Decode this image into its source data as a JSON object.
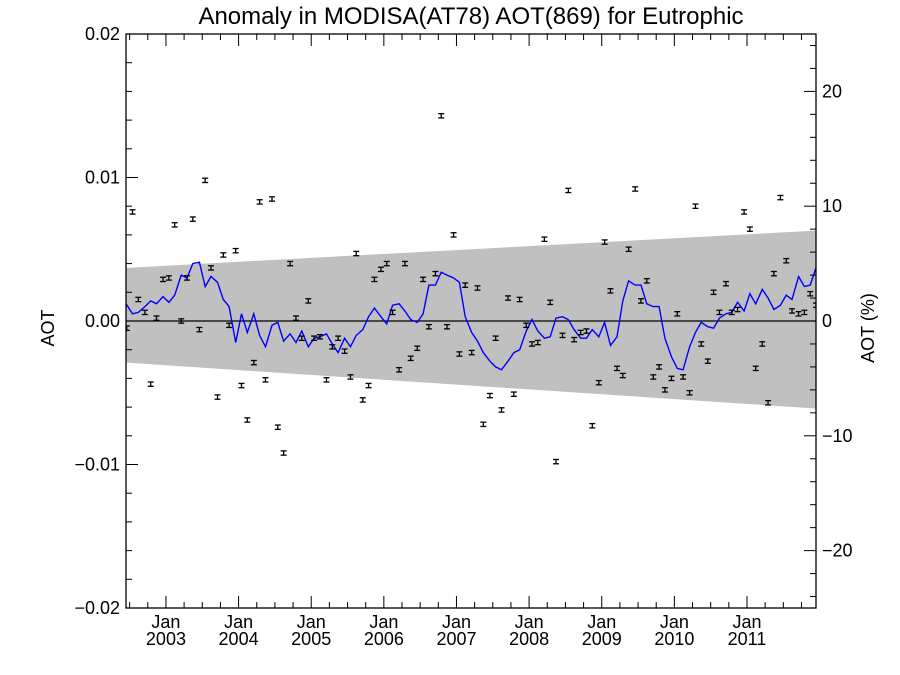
{
  "chart_data": {
    "type": "scatter",
    "title": "Anomaly in MODISA(AT78) AOT(869) for Eutrophic",
    "ylabel": "AOT",
    "ylabel_right": "AOT (%)",
    "xlim": [
      2002.45,
      2011.95
    ],
    "ylim": [
      -0.02,
      0.02
    ],
    "ylim_right": [
      -25,
      25
    ],
    "y_ticks": [
      {
        "value": -0.02,
        "label": "−0.02"
      },
      {
        "value": -0.01,
        "label": "−0.01"
      },
      {
        "value": 0.0,
        "label": "0.00"
      },
      {
        "value": 0.01,
        "label": "0.01"
      },
      {
        "value": 0.02,
        "label": "0.02"
      }
    ],
    "y_ticks_right": [
      {
        "value": -20,
        "label": "−20"
      },
      {
        "value": -10,
        "label": "−10"
      },
      {
        "value": 0,
        "label": "0"
      },
      {
        "value": 10,
        "label": "10"
      },
      {
        "value": 20,
        "label": "20"
      }
    ],
    "x_ticks": [
      {
        "value": 2003.0,
        "month": "Jan",
        "year": "2003"
      },
      {
        "value": 2004.0,
        "month": "Jan",
        "year": "2004"
      },
      {
        "value": 2005.0,
        "month": "Jan",
        "year": "2005"
      },
      {
        "value": 2006.0,
        "month": "Jan",
        "year": "2006"
      },
      {
        "value": 2007.0,
        "month": "Jan",
        "year": "2007"
      },
      {
        "value": 2008.0,
        "month": "Jan",
        "year": "2008"
      },
      {
        "value": 2009.0,
        "month": "Jan",
        "year": "2009"
      },
      {
        "value": 2010.0,
        "month": "Jan",
        "year": "2010"
      },
      {
        "value": 2011.0,
        "month": "Jan",
        "year": "2011"
      }
    ],
    "band": {
      "color": "#c0c0c0",
      "x": [
        2002.45,
        2011.95
      ],
      "upper": [
        0.0037,
        0.0063
      ],
      "lower": [
        -0.0029,
        -0.0061
      ]
    },
    "zero_line_color": "#000000",
    "points": {
      "color": "#000000",
      "error": 0.00015,
      "x": [
        2002.46,
        2002.54,
        2002.62,
        2002.71,
        2002.79,
        2002.87,
        2002.96,
        2003.04,
        2003.12,
        2003.21,
        2003.29,
        2003.37,
        2003.46,
        2003.54,
        2003.62,
        2003.71,
        2003.79,
        2003.87,
        2003.96,
        2004.04,
        2004.12,
        2004.21,
        2004.29,
        2004.37,
        2004.46,
        2004.54,
        2004.62,
        2004.71,
        2004.79,
        2004.87,
        2004.96,
        2005.04,
        2005.12,
        2005.21,
        2005.29,
        2005.37,
        2005.46,
        2005.54,
        2005.62,
        2005.71,
        2005.79,
        2005.87,
        2005.96,
        2006.04,
        2006.12,
        2006.21,
        2006.29,
        2006.37,
        2006.46,
        2006.54,
        2006.62,
        2006.71,
        2006.79,
        2006.87,
        2006.96,
        2007.04,
        2007.12,
        2007.21,
        2007.29,
        2007.37,
        2007.46,
        2007.54,
        2007.62,
        2007.71,
        2007.79,
        2007.87,
        2007.96,
        2008.04,
        2008.12,
        2008.21,
        2008.29,
        2008.37,
        2008.46,
        2008.54,
        2008.62,
        2008.71,
        2008.79,
        2008.87,
        2008.96,
        2009.04,
        2009.12,
        2009.21,
        2009.29,
        2009.37,
        2009.46,
        2009.54,
        2009.62,
        2009.71,
        2009.79,
        2009.87,
        2009.96,
        2010.04,
        2010.12,
        2010.21,
        2010.29,
        2010.37,
        2010.46,
        2010.54,
        2010.62,
        2010.71,
        2010.79,
        2010.87,
        2010.96,
        2011.04,
        2011.12,
        2011.21,
        2011.29,
        2011.37,
        2011.46,
        2011.54,
        2011.62,
        2011.71,
        2011.79,
        2011.87,
        2011.95
      ],
      "y": [
        -0.0005,
        0.0076,
        0.0015,
        0.0006,
        -0.0044,
        0.0002,
        0.0029,
        0.003,
        0.0067,
        0.0,
        0.003,
        0.0071,
        -0.0006,
        0.0098,
        0.0037,
        -0.0053,
        0.0046,
        -0.0003,
        0.0049,
        -0.0045,
        -0.0069,
        -0.0029,
        0.0083,
        -0.0041,
        0.0085,
        -0.0074,
        -0.0092,
        0.004,
        0.0002,
        -0.0012,
        0.0014,
        -0.0012,
        -0.0011,
        -0.0041,
        -0.0018,
        -0.0012,
        -0.0021,
        -0.0039,
        0.0047,
        -0.0055,
        -0.0045,
        0.0029,
        0.0036,
        0.004,
        0.0006,
        -0.0034,
        0.004,
        -0.0026,
        -0.0019,
        0.0029,
        -0.0004,
        0.0033,
        0.0143,
        -0.0004,
        0.006,
        -0.0023,
        0.0025,
        -0.0022,
        0.0023,
        -0.0072,
        -0.0052,
        -0.0012,
        -0.0062,
        0.0016,
        -0.0051,
        0.0015,
        -0.0003,
        -0.0016,
        -0.0015,
        0.0057,
        0.0013,
        -0.0098,
        -0.001,
        0.0091,
        -0.0013,
        -0.0008,
        -0.0007,
        -0.0073,
        -0.0043,
        0.0055,
        0.0021,
        -0.0033,
        -0.0038,
        0.005,
        0.0092,
        0.0014,
        0.0028,
        -0.0039,
        -0.0032,
        -0.0048,
        -0.004,
        0.0005,
        -0.0039,
        -0.005,
        0.008,
        -0.0016,
        -0.0028,
        0.002,
        0.0006,
        0.0026,
        0.0006,
        0.0008,
        0.0076,
        0.0064,
        -0.0033,
        -0.0016,
        -0.0057,
        0.0033,
        0.0086,
        0.0042,
        0.0007,
        0.0005,
        0.0006,
        0.0019,
        0.0011
      ]
    },
    "line": {
      "color": "#0000ff",
      "x": [
        2002.45,
        2002.54,
        2002.62,
        2002.71,
        2002.79,
        2002.87,
        2002.96,
        2003.04,
        2003.12,
        2003.21,
        2003.29,
        2003.37,
        2003.46,
        2003.54,
        2003.62,
        2003.71,
        2003.79,
        2003.87,
        2003.96,
        2004.04,
        2004.12,
        2004.21,
        2004.29,
        2004.37,
        2004.46,
        2004.54,
        2004.62,
        2004.71,
        2004.79,
        2004.87,
        2004.96,
        2005.04,
        2005.12,
        2005.21,
        2005.29,
        2005.37,
        2005.46,
        2005.54,
        2005.62,
        2005.71,
        2005.79,
        2005.87,
        2005.96,
        2006.04,
        2006.12,
        2006.21,
        2006.29,
        2006.37,
        2006.46,
        2006.54,
        2006.62,
        2006.71,
        2006.79,
        2006.87,
        2006.96,
        2007.04,
        2007.12,
        2007.21,
        2007.29,
        2007.37,
        2007.46,
        2007.54,
        2007.62,
        2007.71,
        2007.79,
        2007.87,
        2007.96,
        2008.04,
        2008.12,
        2008.21,
        2008.29,
        2008.37,
        2008.46,
        2008.54,
        2008.62,
        2008.71,
        2008.79,
        2008.87,
        2008.96,
        2009.04,
        2009.12,
        2009.21,
        2009.29,
        2009.37,
        2009.46,
        2009.54,
        2009.62,
        2009.71,
        2009.79,
        2009.87,
        2009.96,
        2010.04,
        2010.12,
        2010.21,
        2010.29,
        2010.37,
        2010.46,
        2010.54,
        2010.62,
        2010.71,
        2010.79,
        2010.87,
        2010.96,
        2011.04,
        2011.12,
        2011.21,
        2011.29,
        2011.37,
        2011.46,
        2011.54,
        2011.62,
        2011.71,
        2011.79,
        2011.87,
        2011.95
      ],
      "y": [
        0.0012,
        0.0005,
        0.0006,
        0.001,
        0.0014,
        0.0012,
        0.0017,
        0.0013,
        0.0018,
        0.0032,
        0.003,
        0.004,
        0.0041,
        0.0024,
        0.0031,
        0.0027,
        0.0015,
        0.001,
        -0.0015,
        0.0005,
        -0.0008,
        0.0005,
        -0.001,
        -0.0018,
        -0.0003,
        -0.0001,
        -0.0014,
        -0.0009,
        -0.0015,
        -0.0007,
        -0.0018,
        -0.0012,
        -0.0011,
        -0.0009,
        -0.0016,
        -0.0022,
        -0.0012,
        -0.0018,
        -0.001,
        -0.0006,
        0.0003,
        0.0009,
        0.0003,
        -0.0002,
        0.0011,
        0.0012,
        0.0007,
        0.0001,
        -0.0001,
        0.0005,
        0.0025,
        0.0025,
        0.0034,
        0.0032,
        0.003,
        0.0027,
        0.0003,
        -0.0008,
        -0.0014,
        -0.0022,
        -0.0028,
        -0.0032,
        -0.0034,
        -0.0028,
        -0.0022,
        -0.002,
        -0.0007,
        0.0001,
        -0.0007,
        -0.0012,
        -0.0011,
        0.0002,
        0.0003,
        0.0001,
        -0.0006,
        -0.0012,
        -0.0012,
        -0.0006,
        -0.0011,
        -0.0001,
        -0.0017,
        -0.0011,
        0.0014,
        0.0028,
        0.0025,
        0.0025,
        0.0012,
        0.001,
        0.001,
        -0.0012,
        -0.0025,
        -0.0033,
        -0.0034,
        -0.0018,
        -0.0008,
        -0.0001,
        -0.0004,
        -0.0005,
        0.0002,
        0.0005,
        0.0006,
        0.0013,
        0.0007,
        0.0019,
        0.0012,
        0.0022,
        0.0016,
        0.0008,
        0.0011,
        0.0018,
        0.0015,
        0.0031,
        0.0024,
        0.0025,
        0.0037
      ]
    }
  }
}
